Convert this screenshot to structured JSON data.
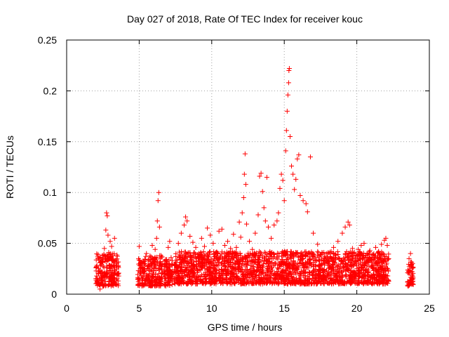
{
  "chart_data": {
    "type": "scatter",
    "title": "Day 027 of 2018, Rate Of TEC Index for receiver kouc",
    "xlabel": "GPS time / hours",
    "ylabel": "ROTI / TECUs",
    "xlim": [
      0,
      25
    ],
    "ylim": [
      0,
      0.25
    ],
    "xticks": [
      0,
      5,
      10,
      15,
      20,
      25
    ],
    "xtick_labels": [
      "0",
      "5",
      "10",
      "15",
      "20",
      "25"
    ],
    "yticks": [
      0,
      0.05,
      0.1,
      0.15,
      0.2,
      0.25
    ],
    "ytick_labels": [
      "0",
      "0.05",
      "0.1",
      "0.15",
      "0.2",
      "0.25"
    ],
    "grid": true,
    "marker": "plus",
    "color": "#ff0000",
    "series": [
      {
        "points": [
          [
            2.1,
            0.012
          ],
          [
            2.2,
            0.025
          ],
          [
            2.3,
            0.031
          ],
          [
            2.4,
            0.018
          ],
          [
            2.5,
            0.036
          ],
          [
            2.6,
            0.045
          ],
          [
            2.7,
            0.063
          ],
          [
            2.75,
            0.08
          ],
          [
            2.8,
            0.077
          ],
          [
            2.85,
            0.058
          ],
          [
            2.9,
            0.041
          ],
          [
            3.0,
            0.052
          ],
          [
            3.1,
            0.047
          ],
          [
            3.2,
            0.033
          ],
          [
            3.3,
            0.055
          ],
          [
            3.4,
            0.028
          ],
          [
            3.5,
            0.02
          ],
          [
            3.55,
            0.013
          ],
          [
            2.3,
            0.005
          ],
          [
            2.6,
            0.009
          ],
          [
            3.0,
            0.015
          ],
          [
            3.4,
            0.01
          ],
          [
            4.9,
            0.015
          ],
          [
            5.0,
            0.047
          ],
          [
            5.1,
            0.031
          ],
          [
            5.3,
            0.022
          ],
          [
            5.5,
            0.04
          ],
          [
            5.7,
            0.034
          ],
          [
            5.9,
            0.048
          ],
          [
            6.0,
            0.026
          ],
          [
            6.1,
            0.044
          ],
          [
            6.2,
            0.055
          ],
          [
            6.25,
            0.072
          ],
          [
            6.3,
            0.092
          ],
          [
            6.35,
            0.1
          ],
          [
            6.4,
            0.066
          ],
          [
            6.5,
            0.038
          ],
          [
            6.6,
            0.021
          ],
          [
            5.2,
            0.01
          ],
          [
            5.8,
            0.012
          ],
          [
            6.4,
            0.014
          ],
          [
            6.8,
            0.018
          ],
          [
            6.9,
            0.034
          ],
          [
            7.0,
            0.046
          ],
          [
            7.1,
            0.052
          ],
          [
            7.2,
            0.036
          ],
          [
            7.3,
            0.02
          ],
          [
            7.0,
            0.01
          ],
          [
            7.5,
            0.028
          ],
          [
            7.7,
            0.05
          ],
          [
            7.9,
            0.06
          ],
          [
            8.1,
            0.068
          ],
          [
            8.2,
            0.076
          ],
          [
            8.3,
            0.072
          ],
          [
            8.5,
            0.057
          ],
          [
            8.7,
            0.051
          ],
          [
            8.9,
            0.046
          ],
          [
            9.1,
            0.04
          ],
          [
            9.3,
            0.055
          ],
          [
            9.5,
            0.047
          ],
          [
            9.7,
            0.065
          ],
          [
            9.9,
            0.058
          ],
          [
            10.1,
            0.05
          ],
          [
            10.3,
            0.041
          ],
          [
            10.5,
            0.062
          ],
          [
            10.7,
            0.064
          ],
          [
            10.9,
            0.048
          ],
          [
            11.1,
            0.052
          ],
          [
            11.3,
            0.045
          ],
          [
            11.5,
            0.059
          ],
          [
            11.7,
            0.046
          ],
          [
            11.9,
            0.071
          ],
          [
            7.8,
            0.012
          ],
          [
            8.6,
            0.01
          ],
          [
            9.4,
            0.013
          ],
          [
            10.2,
            0.011
          ],
          [
            11.0,
            0.012
          ],
          [
            11.8,
            0.014
          ],
          [
            12.0,
            0.056
          ],
          [
            12.1,
            0.08
          ],
          [
            12.2,
            0.095
          ],
          [
            12.25,
            0.118
          ],
          [
            12.3,
            0.138
          ],
          [
            12.35,
            0.108
          ],
          [
            12.4,
            0.069
          ],
          [
            12.6,
            0.052
          ],
          [
            12.8,
            0.044
          ],
          [
            13.0,
            0.06
          ],
          [
            13.2,
            0.078
          ],
          [
            13.3,
            0.116
          ],
          [
            13.4,
            0.119
          ],
          [
            13.5,
            0.101
          ],
          [
            13.6,
            0.085
          ],
          [
            13.7,
            0.072
          ],
          [
            13.8,
            0.115
          ],
          [
            13.9,
            0.066
          ],
          [
            14.1,
            0.055
          ],
          [
            14.3,
            0.068
          ],
          [
            14.5,
            0.072
          ],
          [
            14.6,
            0.08
          ],
          [
            14.7,
            0.104
          ],
          [
            14.8,
            0.118
          ],
          [
            14.9,
            0.112
          ],
          [
            15.0,
            0.092
          ],
          [
            15.1,
            0.141
          ],
          [
            15.15,
            0.161
          ],
          [
            15.2,
            0.18
          ],
          [
            15.25,
            0.196
          ],
          [
            15.3,
            0.208
          ],
          [
            15.32,
            0.22
          ],
          [
            15.35,
            0.222
          ],
          [
            15.4,
            0.155
          ],
          [
            15.5,
            0.126
          ],
          [
            15.6,
            0.118
          ],
          [
            15.7,
            0.103
          ],
          [
            15.8,
            0.113
          ],
          [
            15.9,
            0.133
          ],
          [
            16.0,
            0.137
          ],
          [
            16.1,
            0.097
          ],
          [
            16.3,
            0.092
          ],
          [
            16.5,
            0.089
          ],
          [
            16.6,
            0.081
          ],
          [
            16.8,
            0.135
          ],
          [
            17.0,
            0.06
          ],
          [
            17.3,
            0.049
          ],
          [
            17.6,
            0.041
          ],
          [
            17.9,
            0.04
          ],
          [
            12.5,
            0.012
          ],
          [
            13.5,
            0.01
          ],
          [
            14.5,
            0.011
          ],
          [
            15.5,
            0.012
          ],
          [
            16.5,
            0.01
          ],
          [
            17.5,
            0.013
          ],
          [
            18.1,
            0.033
          ],
          [
            18.4,
            0.046
          ],
          [
            18.7,
            0.052
          ],
          [
            19.0,
            0.06
          ],
          [
            19.2,
            0.066
          ],
          [
            19.4,
            0.071
          ],
          [
            19.5,
            0.068
          ],
          [
            19.7,
            0.045
          ],
          [
            19.9,
            0.036
          ],
          [
            20.1,
            0.044
          ],
          [
            20.3,
            0.048
          ],
          [
            20.5,
            0.05
          ],
          [
            20.7,
            0.04
          ],
          [
            20.9,
            0.043
          ],
          [
            21.1,
            0.039
          ],
          [
            21.3,
            0.046
          ],
          [
            21.5,
            0.042
          ],
          [
            21.7,
            0.049
          ],
          [
            21.9,
            0.053
          ],
          [
            22.0,
            0.055
          ],
          [
            22.1,
            0.048
          ],
          [
            22.2,
            0.035
          ],
          [
            18.5,
            0.012
          ],
          [
            19.5,
            0.013
          ],
          [
            20.5,
            0.011
          ],
          [
            21.5,
            0.012
          ],
          [
            23.5,
            0.012
          ],
          [
            23.6,
            0.035
          ],
          [
            23.7,
            0.04
          ],
          [
            23.75,
            0.027
          ],
          [
            23.8,
            0.019
          ],
          [
            23.85,
            0.01
          ]
        ]
      }
    ],
    "bands": [
      {
        "x0": 2.0,
        "x1": 3.6,
        "y0": 0.008,
        "y1": 0.04
      },
      {
        "x0": 4.9,
        "x1": 6.6,
        "y0": 0.008,
        "y1": 0.038
      },
      {
        "x0": 6.7,
        "x1": 7.3,
        "y0": 0.008,
        "y1": 0.035
      },
      {
        "x0": 7.4,
        "x1": 22.2,
        "y0": 0.01,
        "y1": 0.042
      },
      {
        "x0": 23.5,
        "x1": 23.9,
        "y0": 0.008,
        "y1": 0.032
      }
    ]
  }
}
